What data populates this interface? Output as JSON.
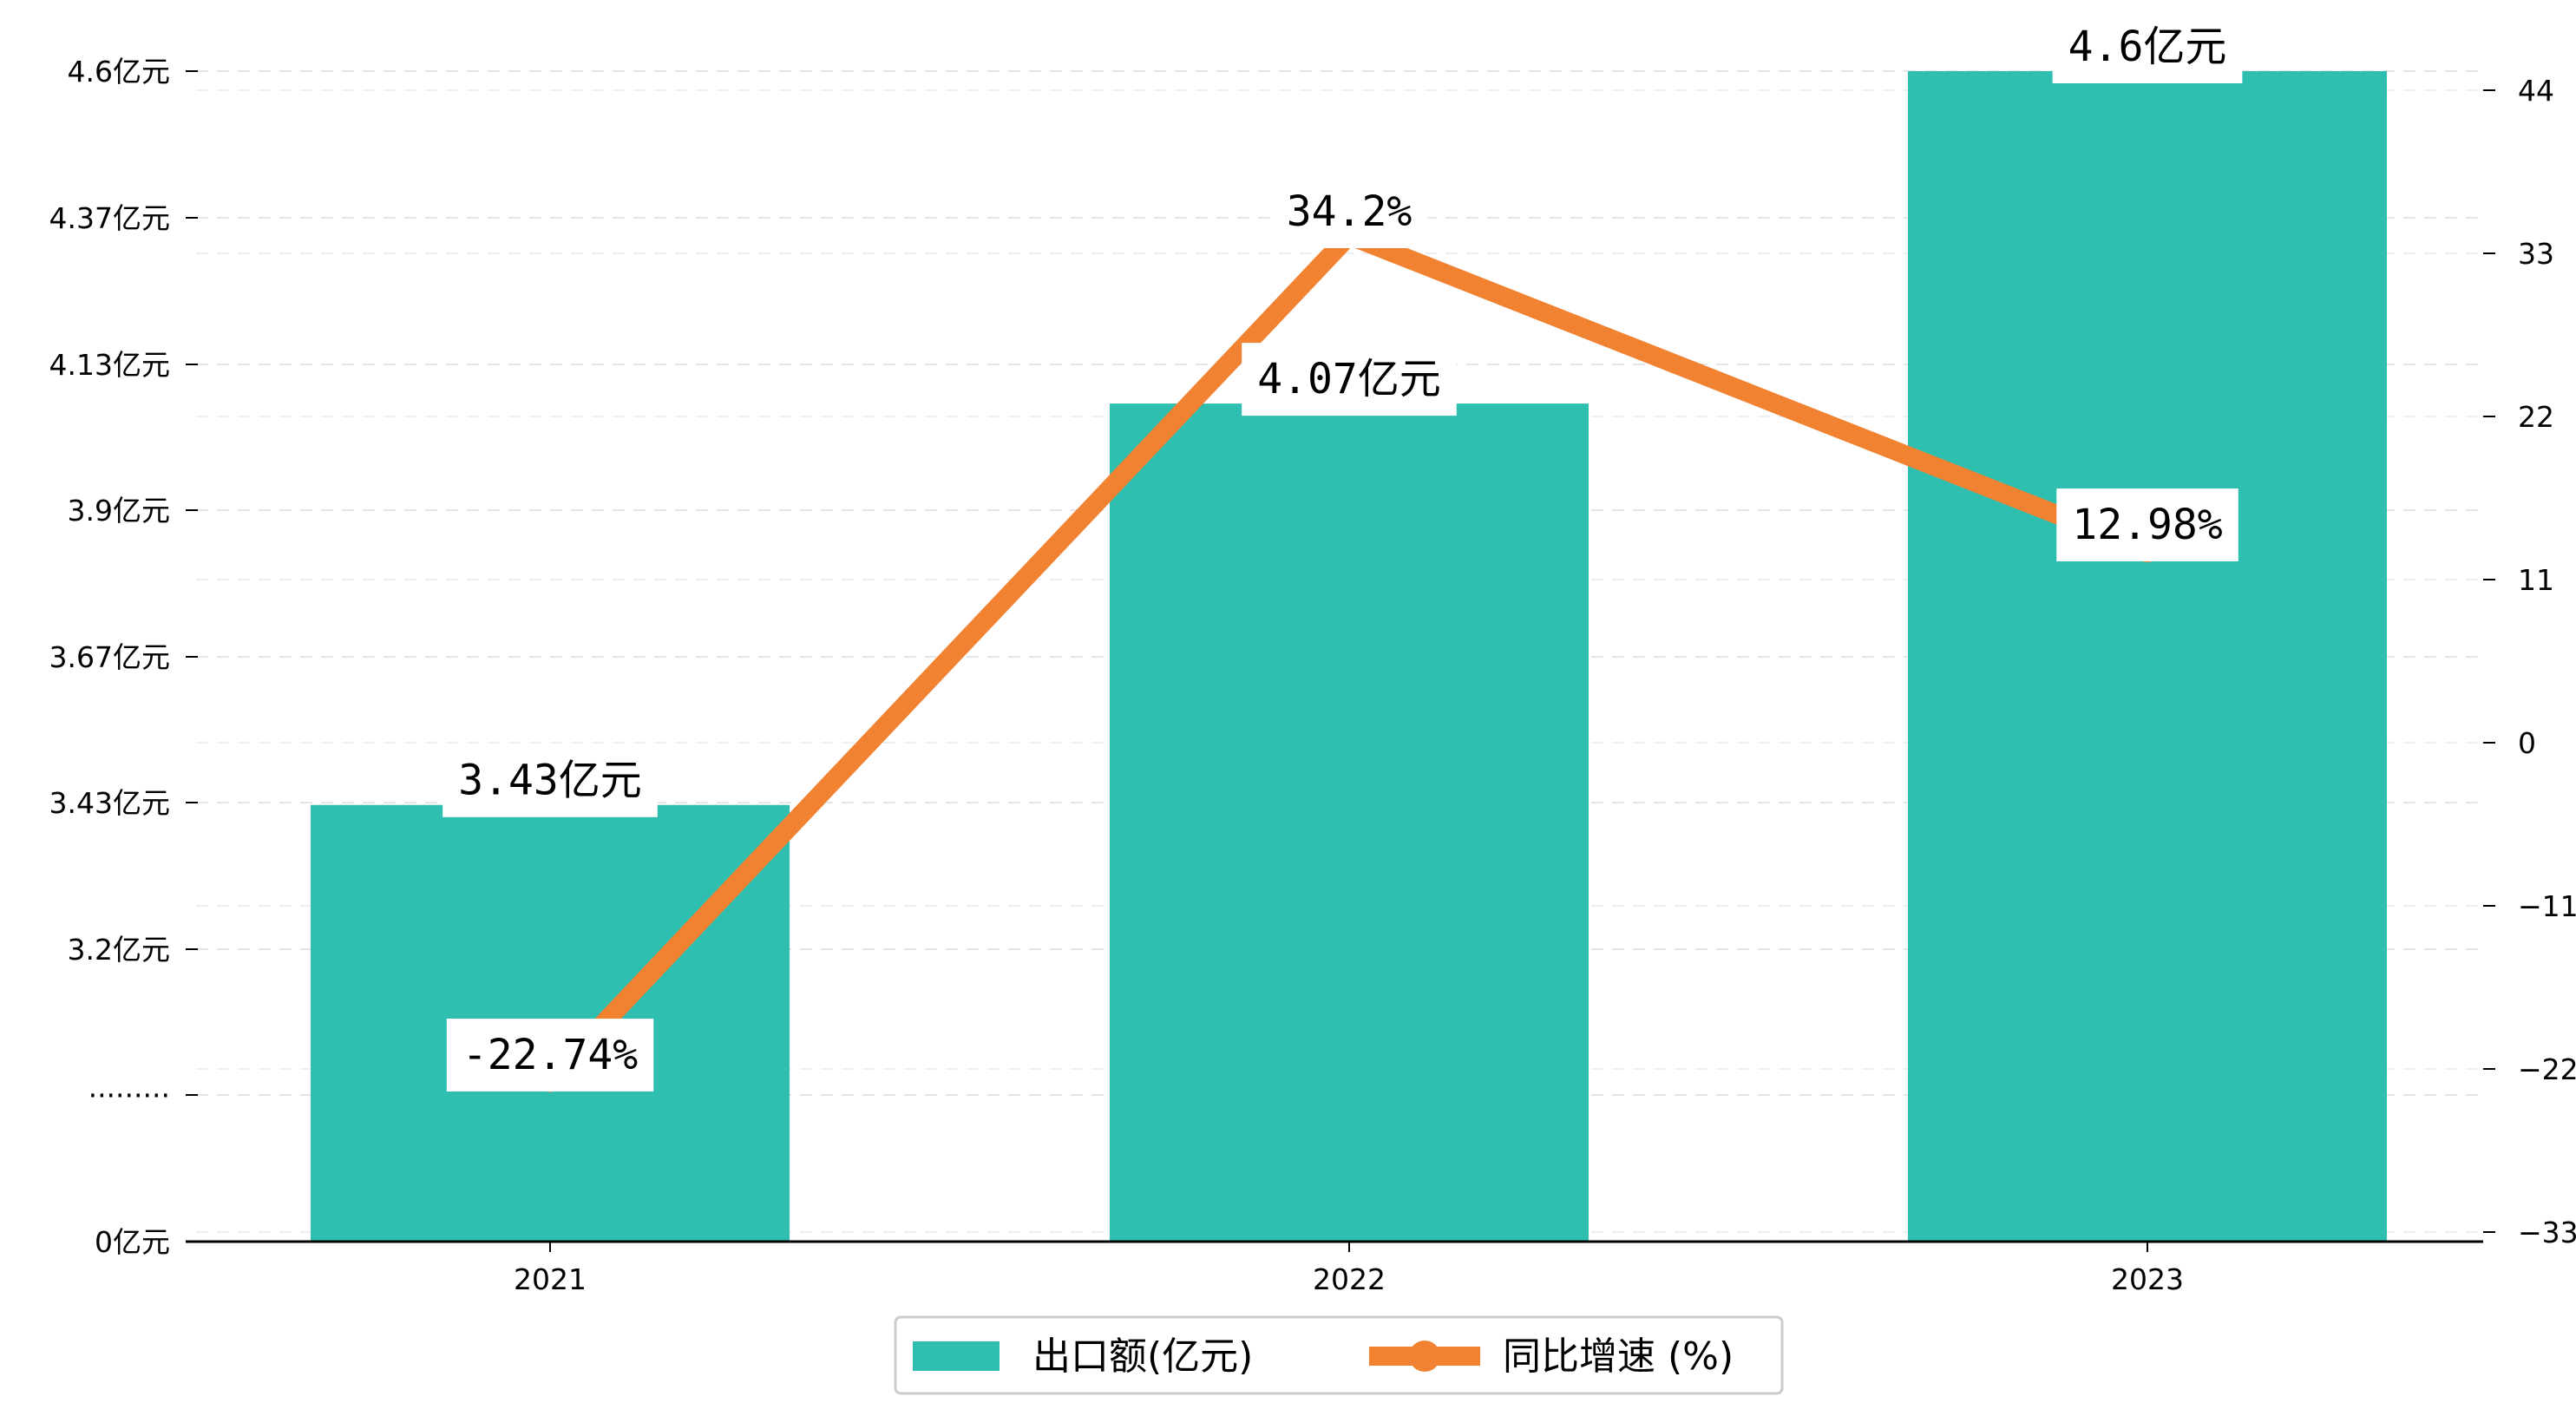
{
  "chart_data": {
    "type": "bar",
    "categories": [
      "2021",
      "2022",
      "2023"
    ],
    "series": [
      {
        "name": "出口额(亿元)",
        "type": "bar",
        "axis": "left",
        "values": [
          3.43,
          4.07,
          4.6
        ],
        "labels": [
          "3.43亿元",
          "4.07亿元",
          "4.6亿元"
        ],
        "color": "#2ebfb0"
      },
      {
        "name": "同比增速 (%)",
        "type": "line",
        "axis": "right",
        "values": [
          -22.74,
          34.2,
          12.98
        ],
        "labels": [
          "-22.74%",
          "34.2%",
          "12.98%"
        ],
        "color": "#f08232"
      }
    ],
    "y_left": {
      "tick_labels": [
        "0亿元",
        "·········",
        "3.2亿元",
        "3.43亿元",
        "3.67亿元",
        "3.9亿元",
        "4.13亿元",
        "4.37亿元",
        "4.6亿元"
      ]
    },
    "y_right": {
      "ticks": [
        -33,
        -22,
        -11,
        0,
        11,
        22,
        33,
        44
      ],
      "ylim": [
        -33,
        44
      ]
    },
    "grid": "horizontal dashed",
    "legend_position": "bottom-center"
  }
}
